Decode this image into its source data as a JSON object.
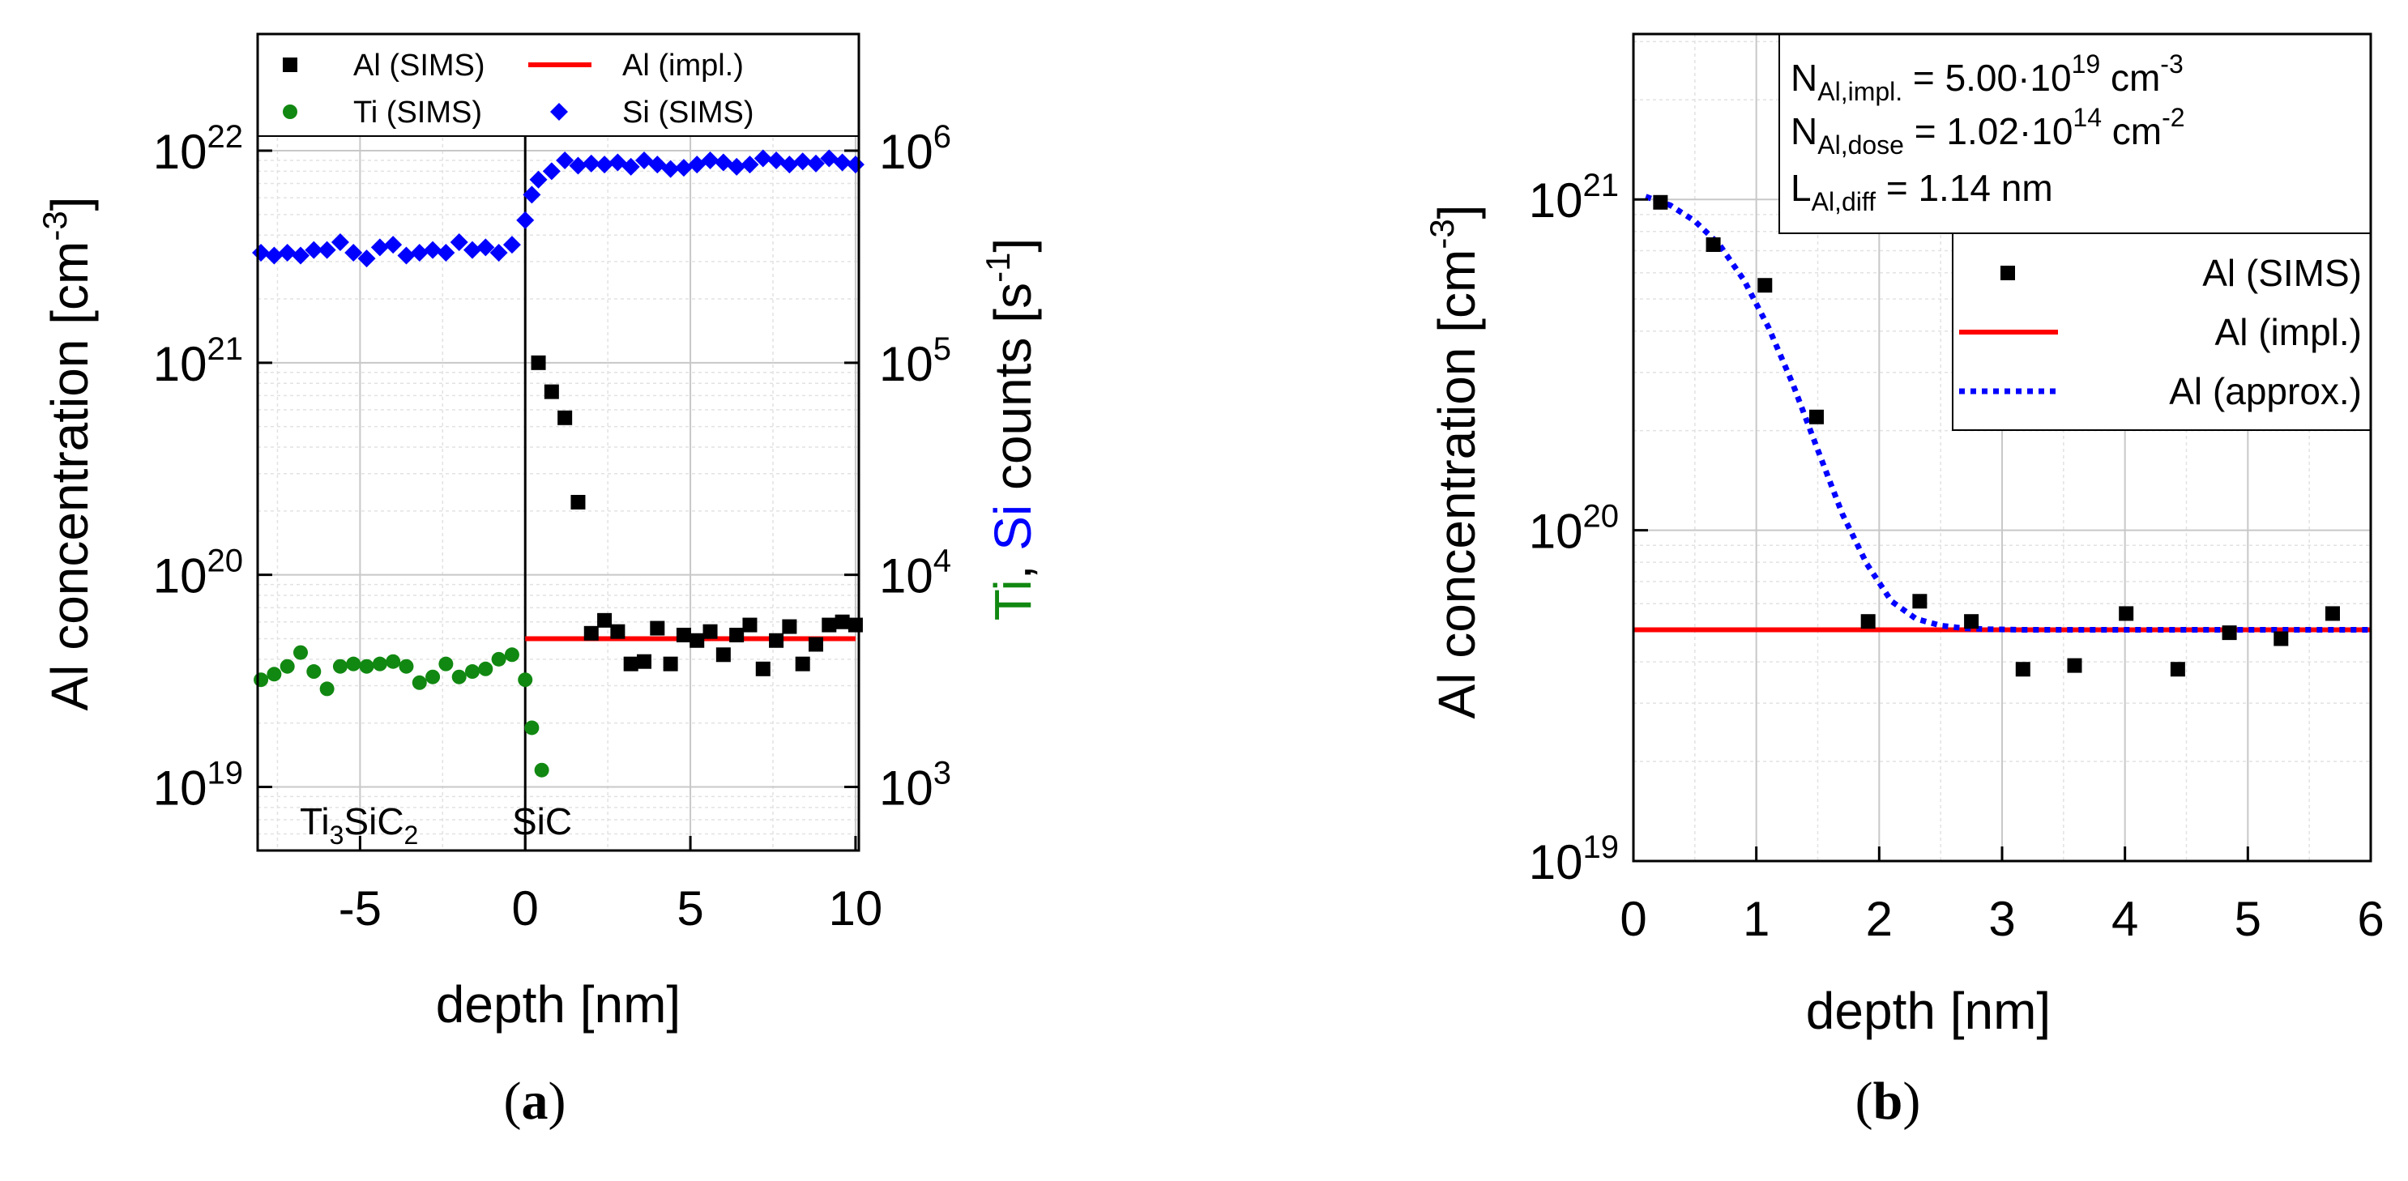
{
  "figure": {
    "panel_a_label": {
      "open": "(",
      "letter": "a",
      "close": ")"
    },
    "panel_b_label": {
      "open": "(",
      "letter": "b",
      "close": ")"
    }
  },
  "colors": {
    "al_sims": "#000000",
    "al_impl": "#ff0000",
    "ti_sims": "#118811",
    "si_sims": "#0000ff",
    "approx": "#0000ff",
    "grid": "#c8c8c8"
  },
  "chart_data": [
    {
      "id": "a",
      "type": "scatter",
      "xlabel": "depth [nm]",
      "ylabel": {
        "text": "Al concentration [cm",
        "sup": "-3",
        "end": "]"
      },
      "y2label": {
        "ti": "Ti",
        "comma": ", ",
        "si": "Si",
        "rest": " counts [s",
        "sup": "-1",
        "end": "]"
      },
      "xlim": [
        -8.1,
        10.1
      ],
      "ylim_log10": [
        18.7,
        22.55
      ],
      "y2lim_log10": [
        2.7,
        6.55
      ],
      "xticks": [
        -5,
        0,
        5,
        10
      ],
      "xtick_labels": [
        "-5",
        "0",
        "5",
        "10"
      ],
      "yticks": [
        {
          "value": 19,
          "base": "10",
          "exp": "19"
        },
        {
          "value": 20,
          "base": "10",
          "exp": "20"
        },
        {
          "value": 21,
          "base": "10",
          "exp": "21"
        },
        {
          "value": 22,
          "base": "10",
          "exp": "22"
        }
      ],
      "y2ticks": [
        {
          "value": 3,
          "base": "10",
          "exp": "3"
        },
        {
          "value": 4,
          "base": "10",
          "exp": "4"
        },
        {
          "value": 5,
          "base": "10",
          "exp": "5"
        },
        {
          "value": 6,
          "base": "10",
          "exp": "6"
        }
      ],
      "interface_x": 0,
      "region_labels": [
        {
          "key": "ti3sic2",
          "parts": [
            {
              "t": "Ti",
              "s": ""
            },
            {
              "t": "3",
              "s": "sub"
            },
            {
              "t": "SiC",
              "s": ""
            },
            {
              "t": "2",
              "s": "sub"
            }
          ]
        },
        {
          "key": "sic",
          "parts": [
            {
              "t": "SiC",
              "s": ""
            }
          ]
        }
      ],
      "legend": [
        {
          "key": "al_sims",
          "label": "Al (SIMS)",
          "marker": "square"
        },
        {
          "key": "al_impl",
          "label": "Al (impl.)",
          "marker": "line"
        },
        {
          "key": "ti_sims",
          "label": "Ti (SIMS)",
          "marker": "circle"
        },
        {
          "key": "si_sims",
          "label": "Si (SIMS)",
          "marker": "diamond"
        }
      ],
      "series": [
        {
          "name": "Al (SIMS)",
          "axis": "left",
          "marker": "square",
          "x": [
            0.4,
            0.8,
            1.2,
            1.6,
            2.0,
            2.4,
            2.8,
            3.2,
            3.6,
            4.0,
            4.4,
            4.8,
            5.2,
            5.6,
            6.0,
            6.4,
            6.8,
            7.2,
            7.6,
            8.0,
            8.4,
            8.8,
            9.2,
            9.6,
            10.0
          ],
          "y": [
            1e+21,
            7.3e+20,
            5.5e+20,
            2.2e+20,
            5.3e+19,
            6.1e+19,
            5.4e+19,
            3.8e+19,
            3.9e+19,
            5.6e+19,
            3.8e+19,
            5.2e+19,
            4.9e+19,
            5.4e+19,
            4.2e+19,
            5.2e+19,
            5.8e+19,
            3.6e+19,
            4.9e+19,
            5.7e+19,
            3.8e+19,
            4.7e+19,
            5.8e+19,
            6e+19,
            5.8e+19
          ]
        },
        {
          "name": "Al (impl.)",
          "axis": "left",
          "marker": "line",
          "x": [
            0.0,
            10.0
          ],
          "y": [
            5e+19,
            5e+19
          ]
        },
        {
          "name": "Ti (SIMS)",
          "axis": "right",
          "marker": "circle",
          "x": [
            -8.0,
            -7.6,
            -7.2,
            -6.8,
            -6.4,
            -6.0,
            -5.6,
            -5.2,
            -4.8,
            -4.4,
            -4.0,
            -3.6,
            -3.2,
            -2.8,
            -2.4,
            -2.0,
            -1.6,
            -1.2,
            -0.8,
            -0.4,
            0.0,
            0.2,
            0.5
          ],
          "y": [
            3200,
            3400,
            3700,
            4300,
            3500,
            2900,
            3700,
            3800,
            3700,
            3800,
            3900,
            3700,
            3100,
            3300,
            3800,
            3300,
            3500,
            3600,
            4000,
            4200,
            3200,
            1900,
            1200
          ]
        },
        {
          "name": "Si (SIMS)",
          "axis": "right",
          "marker": "diamond",
          "x": [
            -8.0,
            -7.6,
            -7.2,
            -6.8,
            -6.4,
            -6.0,
            -5.6,
            -5.2,
            -4.8,
            -4.4,
            -4.0,
            -3.6,
            -3.2,
            -2.8,
            -2.4,
            -2.0,
            -1.6,
            -1.2,
            -0.8,
            -0.4,
            0.0,
            0.2,
            0.4,
            0.8,
            1.2,
            1.6,
            2.0,
            2.4,
            2.8,
            3.2,
            3.6,
            4.0,
            4.4,
            4.8,
            5.2,
            5.6,
            6.0,
            6.4,
            6.8,
            7.2,
            7.6,
            8.0,
            8.4,
            8.8,
            9.2,
            9.6,
            10.0
          ],
          "y": [
            330000,
            320000,
            330000,
            320000,
            340000,
            340000,
            370000,
            330000,
            310000,
            350000,
            360000,
            320000,
            330000,
            340000,
            330000,
            370000,
            340000,
            350000,
            330000,
            360000,
            470000,
            620000,
            730000,
            800000,
            900000,
            850000,
            870000,
            860000,
            880000,
            840000,
            900000,
            860000,
            820000,
            830000,
            860000,
            900000,
            880000,
            840000,
            860000,
            920000,
            900000,
            860000,
            890000,
            870000,
            920000,
            880000,
            860000
          ]
        }
      ]
    },
    {
      "id": "b",
      "type": "scatter",
      "xlabel": "depth [nm]",
      "ylabel": {
        "text": "Al concentration [cm",
        "sup": "-3",
        "end": "]"
      },
      "xlim": [
        0,
        6
      ],
      "ylim_log10": [
        19,
        21.5
      ],
      "xticks": [
        0,
        1,
        2,
        3,
        4,
        5,
        6
      ],
      "xtick_labels": [
        "0",
        "1",
        "2",
        "3",
        "4",
        "5",
        "6"
      ],
      "yticks": [
        {
          "value": 19,
          "base": "10",
          "exp": "19"
        },
        {
          "value": 20,
          "base": "10",
          "exp": "20"
        },
        {
          "value": 21,
          "base": "10",
          "exp": "21"
        }
      ],
      "params": [
        {
          "main": "N",
          "sub": "Al,impl.",
          "eq": " = 5.00·10",
          "exp": "19",
          "unit": " cm",
          "uexp": "-3"
        },
        {
          "main": "N",
          "sub": "Al,dose",
          "eq": " = 1.02·10",
          "exp": "14",
          "unit": " cm",
          "uexp": "-2"
        },
        {
          "main": "L",
          "sub": "Al,diff",
          "eq": " = 1.14 nm",
          "exp": "",
          "unit": "",
          "uexp": ""
        }
      ],
      "legend": [
        {
          "key": "al_sims",
          "label": "Al (SIMS)",
          "marker": "square"
        },
        {
          "key": "al_impl",
          "label": "Al (impl.)",
          "marker": "line"
        },
        {
          "key": "approx",
          "label": "Al (approx.)",
          "marker": "dotted"
        }
      ],
      "series": [
        {
          "name": "Al (SIMS)",
          "marker": "square",
          "x": [
            0.22,
            0.65,
            1.07,
            1.49,
            1.91,
            2.33,
            2.75,
            3.17,
            3.59,
            4.01,
            4.43,
            4.85,
            5.27,
            5.69
          ],
          "y": [
            9.8e+20,
            7.3e+20,
            5.5e+20,
            2.2e+20,
            5.3e+19,
            6.1e+19,
            5.3e+19,
            3.8e+19,
            3.9e+19,
            5.6e+19,
            3.8e+19,
            4.9e+19,
            4.7e+19,
            5.6e+19
          ]
        },
        {
          "name": "Al (impl.)",
          "marker": "line",
          "x": [
            0,
            6
          ],
          "y": [
            5e+19,
            5e+19
          ]
        },
        {
          "name": "Al (approx.)",
          "marker": "dotted",
          "x": [
            0.1,
            0.3,
            0.5,
            0.7,
            0.9,
            1.1,
            1.3,
            1.5,
            1.7,
            1.9,
            2.1,
            2.3,
            2.5,
            2.7,
            2.9,
            3.2,
            3.6,
            4.0,
            5.0,
            6.0
          ],
          "y": [
            1.02e+21,
            9.6e+20,
            8.6e+20,
            7.3e+20,
            5.7e+20,
            4.1e+20,
            2.75e+20,
            1.75e+20,
            1.12e+20,
            7.9e+19,
            6.1e+19,
            5.4e+19,
            5.15e+19,
            5.05e+19,
            5.02e+19,
            5e+19,
            5e+19,
            5e+19,
            5e+19,
            5e+19
          ]
        }
      ]
    }
  ]
}
